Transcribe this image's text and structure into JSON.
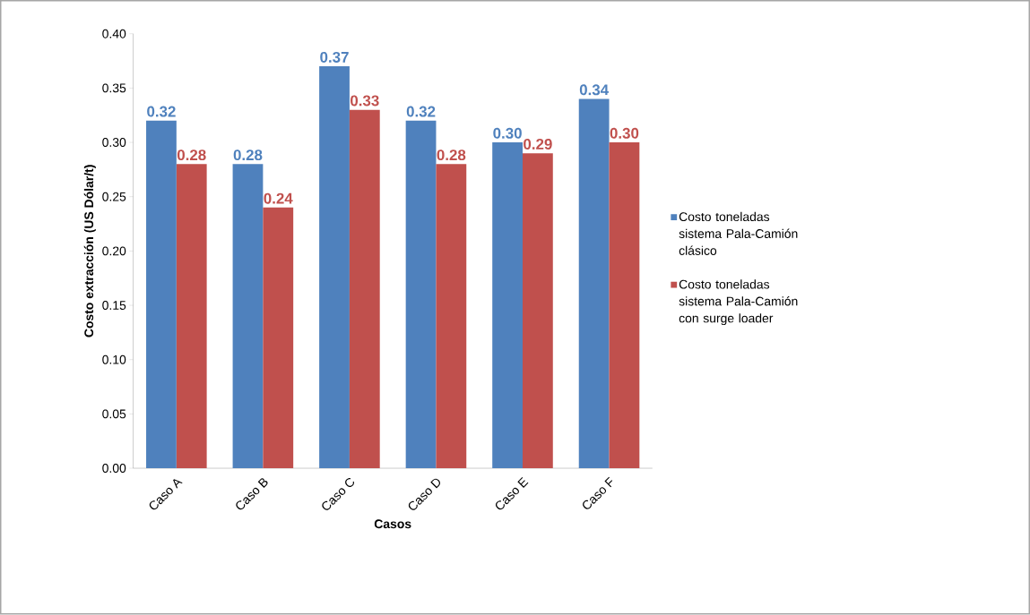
{
  "chart_data": {
    "type": "bar",
    "xlabel": "Casos",
    "ylabel": "Costo extracción (US Dólar/t)",
    "categories": [
      "Caso A",
      "Caso B",
      "Caso C",
      "Caso D",
      "Caso E",
      "Caso F"
    ],
    "series": [
      {
        "name": "Costo toneladas sistema Pala-Camión clásico",
        "color": "#4f81bd",
        "values": [
          0.32,
          0.28,
          0.37,
          0.32,
          0.3,
          0.34
        ],
        "value_labels": [
          "0.32",
          "0.28",
          "0.37",
          "0.32",
          "0.30",
          "0.34"
        ]
      },
      {
        "name": "Costo toneladas sistema Pala-Camión con surge loader",
        "color": "#c0504d",
        "values": [
          0.28,
          0.24,
          0.33,
          0.28,
          0.29,
          0.3
        ],
        "value_labels": [
          "0.28",
          "0.24",
          "0.33",
          "0.28",
          "0.29",
          "0.30"
        ]
      }
    ],
    "ylim": [
      0,
      0.4
    ],
    "yticks": [
      {
        "value": 0,
        "label": "0.00"
      },
      {
        "value": 0.05,
        "label": "0.05"
      },
      {
        "value": 0.1,
        "label": "0.10"
      },
      {
        "value": 0.15,
        "label": "0.15"
      },
      {
        "value": 0.2,
        "label": "0.20"
      },
      {
        "value": 0.25,
        "label": "0.25"
      },
      {
        "value": 0.3,
        "label": "0.30"
      },
      {
        "value": 0.35,
        "label": "0.35"
      },
      {
        "value": 0.4,
        "label": "0.40"
      }
    ],
    "grid": false,
    "legend": "right"
  }
}
